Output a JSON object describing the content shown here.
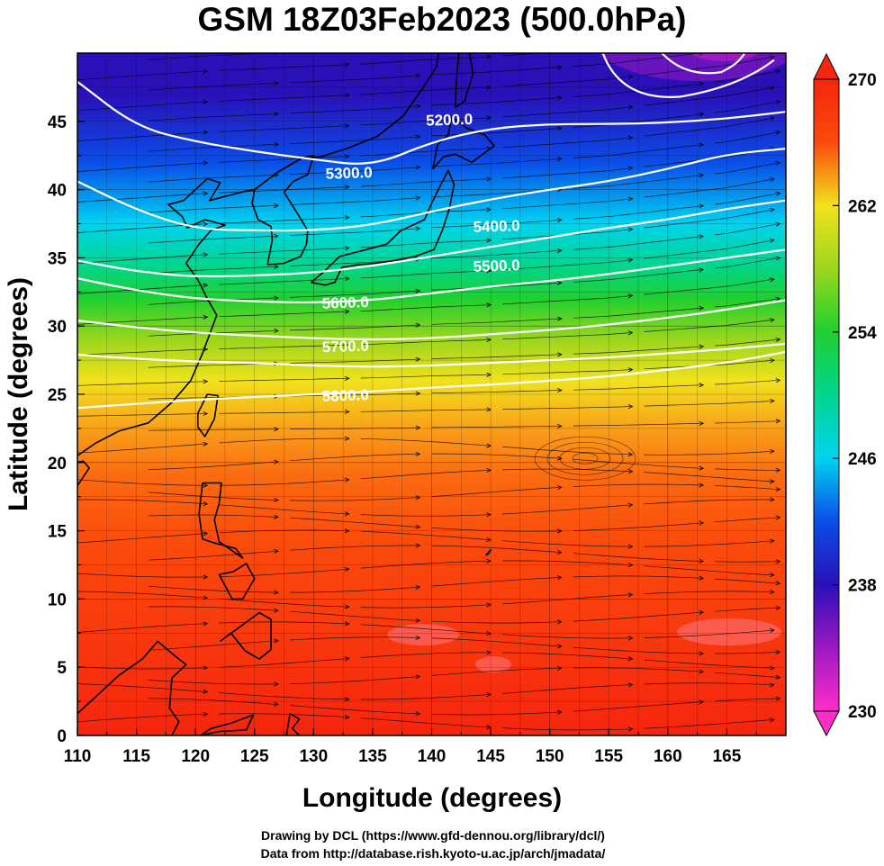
{
  "title": "GSM 18Z03Feb2023 (500.0hPa)",
  "map": {
    "x_axis": {
      "label": "Longitude (degrees)",
      "range": [
        110,
        170
      ],
      "ticks": [
        "110",
        "115",
        "120",
        "125",
        "130",
        "135",
        "140",
        "145",
        "150",
        "155",
        "160",
        "165"
      ]
    },
    "y_axis": {
      "label": "Latitude  (degrees)",
      "range": [
        0,
        50
      ],
      "ticks": [
        "0",
        "5",
        "10",
        "15",
        "20",
        "25",
        "30",
        "35",
        "40",
        "45"
      ]
    },
    "shaded_field": "temperature",
    "contour_field": "geopotential height",
    "vectors": "wind streamlines",
    "contour_labels": [
      {
        "text": "5200.0",
        "lon": 141.5,
        "lat": 45.1
      },
      {
        "text": "5300.0",
        "lon": 133.0,
        "lat": 41.2
      },
      {
        "text": "5400.0",
        "lon": 145.5,
        "lat": 37.3
      },
      {
        "text": "5500.0",
        "lon": 145.5,
        "lat": 34.4
      },
      {
        "text": "5600.0",
        "lon": 132.7,
        "lat": 31.7
      },
      {
        "text": "5700.0",
        "lon": 132.7,
        "lat": 28.5
      },
      {
        "text": "5800.0",
        "lon": 132.7,
        "lat": 24.9
      }
    ],
    "contours": [
      {
        "pts": [
          [
            110,
            47.9
          ],
          [
            115,
            44.6
          ],
          [
            120,
            43.5
          ],
          [
            125,
            42.8
          ],
          [
            130,
            42.2
          ],
          [
            135,
            41.7
          ],
          [
            140,
            43.5
          ],
          [
            145,
            44.5
          ],
          [
            150,
            44.8
          ],
          [
            155,
            44.8
          ],
          [
            160,
            44.9
          ],
          [
            165,
            45.2
          ],
          [
            170,
            45.7
          ]
        ]
      },
      {
        "pts": [
          [
            110,
            40.6
          ],
          [
            115,
            38.5
          ],
          [
            120,
            37.1
          ],
          [
            125,
            37.0
          ],
          [
            130,
            37.0
          ],
          [
            135,
            37.4
          ],
          [
            140,
            38.4
          ],
          [
            145,
            39.3
          ],
          [
            150,
            40.0
          ],
          [
            155,
            40.6
          ],
          [
            160,
            41.5
          ],
          [
            165,
            42.6
          ],
          [
            170,
            43.0
          ]
        ]
      },
      {
        "pts": [
          [
            110,
            34.8
          ],
          [
            115,
            34.0
          ],
          [
            120,
            33.6
          ],
          [
            125,
            33.7
          ],
          [
            130,
            33.9
          ],
          [
            135,
            34.4
          ],
          [
            140,
            35.1
          ],
          [
            145,
            35.8
          ],
          [
            150,
            36.5
          ],
          [
            155,
            37.2
          ],
          [
            160,
            37.8
          ],
          [
            165,
            38.6
          ],
          [
            170,
            39.2
          ]
        ]
      },
      {
        "pts": [
          [
            110,
            33.5
          ],
          [
            115,
            32.6
          ],
          [
            120,
            32.0
          ],
          [
            125,
            31.8
          ],
          [
            130,
            31.7
          ],
          [
            135,
            31.9
          ],
          [
            140,
            32.4
          ],
          [
            145,
            32.9
          ],
          [
            150,
            33.3
          ],
          [
            155,
            33.8
          ],
          [
            160,
            34.4
          ],
          [
            165,
            35.0
          ],
          [
            170,
            35.6
          ]
        ]
      },
      {
        "pts": [
          [
            110,
            30.4
          ],
          [
            115,
            29.9
          ],
          [
            120,
            29.5
          ],
          [
            125,
            29.3
          ],
          [
            130,
            29.1
          ],
          [
            135,
            29.0
          ],
          [
            140,
            29.1
          ],
          [
            145,
            29.4
          ],
          [
            150,
            29.7
          ],
          [
            155,
            30.1
          ],
          [
            160,
            30.6
          ],
          [
            165,
            31.2
          ],
          [
            170,
            31.9
          ]
        ]
      },
      {
        "pts": [
          [
            110,
            27.9
          ],
          [
            115,
            27.6
          ],
          [
            120,
            27.4
          ],
          [
            125,
            27.3
          ],
          [
            130,
            27.1
          ],
          [
            135,
            27.0
          ],
          [
            140,
            27.1
          ],
          [
            145,
            27.3
          ],
          [
            150,
            27.5
          ],
          [
            155,
            27.7
          ],
          [
            160,
            28.0
          ],
          [
            165,
            28.3
          ],
          [
            170,
            28.7
          ]
        ]
      },
      {
        "pts": [
          [
            110,
            24.0
          ],
          [
            115,
            24.3
          ],
          [
            120,
            24.6
          ],
          [
            125,
            24.8
          ],
          [
            130,
            25.0
          ],
          [
            135,
            25.2
          ],
          [
            140,
            25.5
          ],
          [
            145,
            25.7
          ],
          [
            150,
            26.0
          ],
          [
            155,
            26.3
          ],
          [
            160,
            26.8
          ],
          [
            165,
            27.3
          ],
          [
            170,
            28.1
          ]
        ]
      }
    ],
    "coastlines": [
      {
        "name": "Japan",
        "pts": [
          [
            129.8,
            33.2
          ],
          [
            131.0,
            33.0
          ],
          [
            131.8,
            33.2
          ],
          [
            132.4,
            34.3
          ],
          [
            133.8,
            34.5
          ],
          [
            135.2,
            34.6
          ],
          [
            136.8,
            34.8
          ],
          [
            138.6,
            35.1
          ],
          [
            140.2,
            35.6
          ],
          [
            140.9,
            37.0
          ],
          [
            141.5,
            38.6
          ],
          [
            141.9,
            40.4
          ],
          [
            141.4,
            41.4
          ],
          [
            140.8,
            40.4
          ],
          [
            140.0,
            39.0
          ],
          [
            139.4,
            37.8
          ],
          [
            137.4,
            37.0
          ],
          [
            136.2,
            36.0
          ],
          [
            134.0,
            35.5
          ],
          [
            132.2,
            35.1
          ],
          [
            130.9,
            34.0
          ],
          [
            129.8,
            33.2
          ]
        ]
      },
      {
        "name": "Hokkaido",
        "pts": [
          [
            140.1,
            41.5
          ],
          [
            141.0,
            42.4
          ],
          [
            142.0,
            42.6
          ],
          [
            143.4,
            42.0
          ],
          [
            145.3,
            43.2
          ],
          [
            144.5,
            44.0
          ],
          [
            143.0,
            44.5
          ],
          [
            141.7,
            45.3
          ],
          [
            141.4,
            44.0
          ],
          [
            140.5,
            43.3
          ],
          [
            140.1,
            41.5
          ]
        ]
      },
      {
        "name": "Sakhalin",
        "pts": [
          [
            142.0,
            46.0
          ],
          [
            142.8,
            46.5
          ],
          [
            143.5,
            48.5
          ],
          [
            143.2,
            50.0
          ],
          [
            142.3,
            50.0
          ],
          [
            142.1,
            48.0
          ],
          [
            142.0,
            46.0
          ]
        ]
      },
      {
        "name": "Taiwan",
        "pts": [
          [
            120.2,
            22.6
          ],
          [
            120.8,
            21.9
          ],
          [
            121.6,
            23.2
          ],
          [
            121.9,
            24.9
          ],
          [
            121.0,
            25.0
          ],
          [
            120.2,
            23.6
          ],
          [
            120.2,
            22.6
          ]
        ]
      },
      {
        "name": "Korea",
        "pts": [
          [
            126.1,
            34.5
          ],
          [
            127.5,
            34.6
          ],
          [
            128.9,
            35.1
          ],
          [
            129.4,
            36.0
          ],
          [
            129.5,
            37.0
          ],
          [
            128.6,
            38.3
          ],
          [
            127.5,
            39.8
          ],
          [
            128.3,
            40.6
          ],
          [
            129.5,
            41.1
          ],
          [
            130.0,
            42.5
          ],
          [
            129.0,
            42.3
          ],
          [
            127.0,
            41.3
          ],
          [
            125.0,
            40.0
          ],
          [
            124.8,
            39.0
          ],
          [
            125.3,
            37.8
          ],
          [
            126.4,
            37.3
          ],
          [
            126.5,
            36.3
          ],
          [
            126.1,
            34.5
          ]
        ]
      },
      {
        "name": "China-Russia coast",
        "pts": [
          [
            110,
            20.5
          ],
          [
            111.5,
            21.4
          ],
          [
            113.5,
            22.3
          ],
          [
            116.0,
            22.9
          ],
          [
            118.0,
            24.4
          ],
          [
            119.6,
            26.0
          ],
          [
            120.6,
            28.0
          ],
          [
            121.8,
            30.8
          ],
          [
            121.0,
            32.0
          ],
          [
            120.2,
            33.4
          ],
          [
            119.2,
            34.6
          ],
          [
            120.3,
            36.0
          ],
          [
            121.3,
            37.0
          ],
          [
            122.5,
            37.4
          ],
          [
            120.8,
            37.8
          ],
          [
            119.3,
            37.2
          ],
          [
            118.9,
            38.0
          ],
          [
            117.7,
            38.9
          ],
          [
            119.0,
            39.2
          ],
          [
            121.0,
            40.8
          ],
          [
            122.1,
            40.5
          ],
          [
            121.2,
            39.2
          ],
          [
            122.5,
            39.5
          ],
          [
            124.3,
            39.9
          ],
          [
            125.0,
            40.0
          ],
          [
            127.0,
            41.3
          ],
          [
            129.0,
            42.3
          ],
          [
            130.6,
            42.4
          ],
          [
            132.8,
            43.0
          ],
          [
            135.4,
            43.9
          ],
          [
            137.6,
            45.4
          ],
          [
            139.3,
            47.5
          ],
          [
            140.4,
            49.0
          ],
          [
            140.6,
            50.0
          ]
        ]
      },
      {
        "name": "Hainan",
        "pts": [
          [
            108.7,
            18.5
          ],
          [
            110.0,
            18.3
          ],
          [
            111.0,
            19.6
          ],
          [
            110.5,
            20.1
          ],
          [
            109.3,
            19.9
          ],
          [
            108.7,
            18.5
          ]
        ]
      },
      {
        "name": "Luzon",
        "pts": [
          [
            120.6,
            18.5
          ],
          [
            122.2,
            18.5
          ],
          [
            122.0,
            17.0
          ],
          [
            121.6,
            15.8
          ],
          [
            122.0,
            14.2
          ],
          [
            124.0,
            13.0
          ],
          [
            123.4,
            13.7
          ],
          [
            121.6,
            14.1
          ],
          [
            120.6,
            14.4
          ],
          [
            120.3,
            16.2
          ],
          [
            120.6,
            18.5
          ]
        ]
      },
      {
        "name": "Mindanao",
        "pts": [
          [
            122.1,
            6.9
          ],
          [
            123.5,
            7.8
          ],
          [
            125.4,
            9.0
          ],
          [
            126.4,
            8.5
          ],
          [
            126.4,
            6.3
          ],
          [
            125.4,
            5.6
          ],
          [
            124.2,
            6.2
          ],
          [
            123.0,
            7.5
          ],
          [
            122.1,
            6.9
          ]
        ]
      },
      {
        "name": "Visayas",
        "pts": [
          [
            122.0,
            11.8
          ],
          [
            123.1,
            10.0
          ],
          [
            124.0,
            10.0
          ],
          [
            125.0,
            11.5
          ],
          [
            124.3,
            12.6
          ],
          [
            123.2,
            12.0
          ],
          [
            122.0,
            11.8
          ]
        ]
      },
      {
        "name": "Borneo N",
        "pts": [
          [
            110,
            1.6
          ],
          [
            111.5,
            2.8
          ],
          [
            113.5,
            4.4
          ],
          [
            115.5,
            5.6
          ],
          [
            116.8,
            6.9
          ],
          [
            118.3,
            5.8
          ],
          [
            119.2,
            5.2
          ],
          [
            118.0,
            4.2
          ],
          [
            117.8,
            2.0
          ],
          [
            118.6,
            1.0
          ],
          [
            118.0,
            0.0
          ]
        ]
      },
      {
        "name": "Sulawesi N",
        "pts": [
          [
            120.4,
            0.0
          ],
          [
            121.3,
            0.5
          ],
          [
            123.0,
            0.9
          ],
          [
            124.9,
            1.5
          ],
          [
            124.3,
            0.4
          ],
          [
            122.0,
            0.3
          ],
          [
            120.4,
            0.0
          ]
        ]
      },
      {
        "name": "Halmahera",
        "pts": [
          [
            127.7,
            0.0
          ],
          [
            128.0,
            1.6
          ],
          [
            128.8,
            1.2
          ],
          [
            128.2,
            0.5
          ],
          [
            128.8,
            0.0
          ]
        ]
      },
      {
        "name": "Guam",
        "pts": [
          [
            144.6,
            13.2
          ],
          [
            145.0,
            13.6
          ],
          [
            144.8,
            13.3
          ],
          [
            144.6,
            13.2
          ]
        ]
      }
    ],
    "color_bar": {
      "ticks": [
        "230",
        "238",
        "246",
        "254",
        "262",
        "270"
      ],
      "min": 230,
      "max": 270
    },
    "colors": {
      "c230": "#ff2ec8",
      "c234": "#9b19c3",
      "c238": "#2a10b7",
      "c242": "#0a4de8",
      "c246": "#00d3f0",
      "c250": "#00d68f",
      "c254": "#1fd02f",
      "c258": "#9cd61d",
      "c262": "#f1e21c",
      "c266": "#fb4a0c",
      "c270": "#f6250e",
      "contour": "#ffffff",
      "coast": "#000000",
      "streamline": "#000000"
    }
  },
  "credits": {
    "line1": "Drawing by DCL (https://www.gfd-dennou.org/library/dcl/)",
    "line2": "Data from http://database.rish.kyoto-u.ac.jp/arch/jmadata/"
  }
}
